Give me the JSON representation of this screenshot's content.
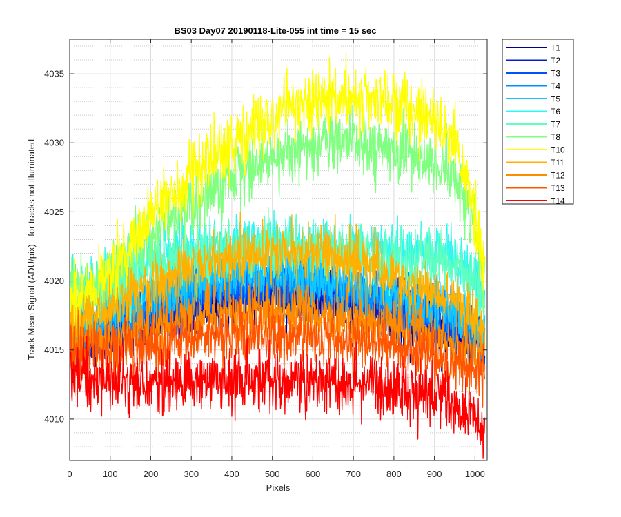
{
  "chart_data": {
    "type": "line",
    "title": "BS03 Day07 20190118-Lite-055 int time = 15 sec",
    "xlabel": "Pixels",
    "ylabel": "Track Mean Signal (ADU/pix) - for tracks not illuminated",
    "xlim": [
      0,
      1030
    ],
    "ylim": [
      4007,
      4037.5
    ],
    "xticks": [
      0,
      100,
      200,
      300,
      400,
      500,
      600,
      700,
      800,
      900,
      1000
    ],
    "yticks": [
      4010,
      4015,
      4020,
      4025,
      4030,
      4035
    ],
    "yminor_step": 1,
    "grid": "on (major solid, minor dotted)",
    "legend_position": "outside-top-right",
    "x_profile": [
      0,
      100,
      200,
      300,
      400,
      500,
      600,
      700,
      800,
      900,
      950,
      1000,
      1020
    ],
    "series": [
      {
        "name": "T1",
        "color": "#00008f",
        "noise": 1.2,
        "profile": [
          4015.0,
          4016.0,
          4017.0,
          4018.0,
          4018.6,
          4018.8,
          4018.8,
          4018.0,
          4017.4,
          4016.6,
          4016.2,
          4015.5,
          4015.0
        ]
      },
      {
        "name": "T2",
        "color": "#0020d0",
        "noise": 1.2,
        "profile": [
          4015.5,
          4016.5,
          4017.5,
          4018.5,
          4019.2,
          4019.4,
          4019.2,
          4018.6,
          4018.0,
          4017.0,
          4016.6,
          4015.8,
          4015.2
        ]
      },
      {
        "name": "T3",
        "color": "#0050ff",
        "noise": 1.2,
        "profile": [
          4016.0,
          4017.0,
          4018.0,
          4019.0,
          4019.6,
          4019.8,
          4019.6,
          4019.0,
          4018.4,
          4017.4,
          4016.8,
          4016.0,
          4015.5
        ]
      },
      {
        "name": "T4",
        "color": "#0090ff",
        "noise": 1.2,
        "profile": [
          4016.5,
          4017.5,
          4018.5,
          4019.4,
          4020.0,
          4020.2,
          4020.0,
          4019.4,
          4018.8,
          4017.8,
          4017.2,
          4016.4,
          4016.0
        ]
      },
      {
        "name": "T5",
        "color": "#10c8ff",
        "noise": 1.2,
        "profile": [
          4017.0,
          4018.0,
          4019.0,
          4019.8,
          4020.5,
          4020.6,
          4020.4,
          4019.8,
          4019.2,
          4018.2,
          4017.6,
          4016.8,
          4016.3
        ]
      },
      {
        "name": "T6",
        "color": "#30f8f0",
        "noise": 1.2,
        "profile": [
          4019.0,
          4020.0,
          4021.5,
          4022.2,
          4022.6,
          4022.8,
          4022.7,
          4022.5,
          4022.3,
          4022.0,
          4021.8,
          4020.5,
          4019.0
        ]
      },
      {
        "name": "T7",
        "color": "#60ffc0",
        "noise": 1.2,
        "profile": [
          4018.5,
          4019.5,
          4021.0,
          4021.8,
          4022.2,
          4022.4,
          4022.3,
          4022.0,
          4021.7,
          4021.3,
          4021.0,
          4019.8,
          4018.5
        ]
      },
      {
        "name": "T8",
        "color": "#80ff80",
        "noise": 1.3,
        "profile": [
          4019.0,
          4020.5,
          4023.5,
          4025.5,
          4027.5,
          4029.0,
          4030.0,
          4030.0,
          4029.5,
          4028.5,
          4027.5,
          4024.0,
          4020.0
        ]
      },
      {
        "name": "T10",
        "color": "#ffff00",
        "noise": 1.4,
        "profile": [
          4018.0,
          4020.5,
          4024.5,
          4027.5,
          4030.0,
          4032.0,
          4033.3,
          4033.3,
          4032.8,
          4031.5,
          4030.0,
          4025.0,
          4020.5
        ]
      },
      {
        "name": "T11",
        "color": "#ffb000",
        "noise": 1.2,
        "profile": [
          4016.5,
          4018.0,
          4019.8,
          4021.0,
          4021.8,
          4022.2,
          4022.0,
          4021.4,
          4020.5,
          4019.3,
          4018.5,
          4017.2,
          4016.5
        ]
      },
      {
        "name": "T12",
        "color": "#ff8c00",
        "noise": 1.2,
        "profile": [
          4015.5,
          4016.0,
          4016.8,
          4017.4,
          4017.7,
          4017.8,
          4017.7,
          4017.3,
          4016.7,
          4015.9,
          4015.4,
          4014.8,
          4014.5
        ]
      },
      {
        "name": "T13",
        "color": "#ff5500",
        "noise": 1.2,
        "profile": [
          4014.8,
          4015.0,
          4015.4,
          4015.8,
          4016.0,
          4016.1,
          4016.0,
          4015.6,
          4015.1,
          4014.5,
          4014.0,
          4013.5,
          4013.2
        ]
      },
      {
        "name": "T14",
        "color": "#ff0000",
        "noise": 1.3,
        "profile": [
          4013.5,
          4012.5,
          4012.5,
          4012.6,
          4012.8,
          4012.8,
          4012.7,
          4012.5,
          4012.2,
          4011.6,
          4011.0,
          4010.3,
          4009.8
        ]
      }
    ]
  }
}
